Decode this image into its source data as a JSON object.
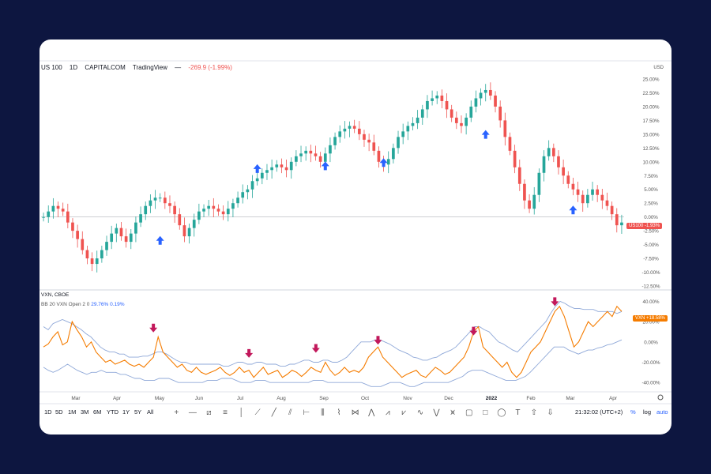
{
  "header": {
    "symbol": "US 100",
    "interval": "1D",
    "source": "CAPITALCOM",
    "platform": "TradingView",
    "change": "-269.9 (-1.99%)"
  },
  "indicator": {
    "name": "VXN, CBOE",
    "bb_label": "BB 20 VXN Open 2 0",
    "bb_v1": "29.76%",
    "bb_v2": "0.19%"
  },
  "price_tag": {
    "label": "US100",
    "value": "-1.93%"
  },
  "vxn_tag": {
    "label": "VXN",
    "value": "+18.58%"
  },
  "timeframes": [
    "1D",
    "5D",
    "1M",
    "3M",
    "6M",
    "YTD",
    "1Y",
    "5Y",
    "All"
  ],
  "clock": "21:32:02 (UTC+2)",
  "right_buttons": [
    "%",
    "log",
    "auto"
  ],
  "colors": {
    "up": "#26a69a",
    "down": "#ef5350",
    "arrow_up": "#2962ff",
    "arrow_down": "#c2185b",
    "vxn": "#f57c00",
    "bb": "#8fa8d8"
  },
  "chart_data": [
    {
      "type": "candlestick",
      "title": "US 100 · 1D · CAPITALCOM",
      "ylabel": "",
      "x_ticks": [
        "Mar",
        "Apr",
        "May",
        "Jun",
        "Jul",
        "Aug",
        "Sep",
        "Oct",
        "Nov",
        "Dec",
        "2022",
        "Feb",
        "Mar",
        "Apr"
      ],
      "y_ticks": [
        "25.00%",
        "22.50%",
        "20.00%",
        "17.50%",
        "15.00%",
        "12.50%",
        "10.00%",
        "7.50%",
        "5.00%",
        "2.50%",
        "0.00%",
        "-2.50%",
        "-5.00%",
        "-7.50%",
        "-10.00%",
        "-12.50%"
      ],
      "y_ticks_values": [
        25,
        22.5,
        20,
        17.5,
        15,
        12.5,
        10,
        7.5,
        5,
        2.5,
        0,
        -2.5,
        -5,
        -7.5,
        -10,
        -12.5
      ],
      "ylim": [
        -12.5,
        25
      ],
      "unit": "USD",
      "series_pct": [
        0,
        1,
        2,
        1.5,
        1,
        -1,
        -2.5,
        -4,
        -6,
        -7.5,
        -8.5,
        -7.5,
        -6,
        -4.5,
        -3,
        -2,
        -3.5,
        -4.5,
        -3,
        -1,
        0.5,
        2,
        3,
        3.5,
        3.5,
        2.5,
        2,
        0.5,
        -1.5,
        -3.5,
        -2,
        -0.5,
        1,
        1.5,
        2,
        1.5,
        1,
        0.5,
        1.5,
        2.5,
        3.5,
        4.5,
        5,
        6.5,
        7,
        8,
        8.5,
        9,
        9.5,
        9,
        8.5,
        10,
        11,
        11.5,
        12,
        11.5,
        11,
        10,
        11.5,
        13,
        14.5,
        15.5,
        16,
        16.5,
        16,
        15,
        14,
        13.5,
        12,
        10,
        9.5,
        10.5,
        12.5,
        14.5,
        15.5,
        16.5,
        17,
        18,
        19.5,
        21,
        21.5,
        22,
        21,
        19.5,
        18,
        17,
        16.5,
        18,
        20,
        21.5,
        22.5,
        23,
        22,
        20,
        17.5,
        14.5,
        12,
        9,
        6,
        3,
        1.5,
        4,
        8,
        11,
        12.5,
        11,
        9,
        7.5,
        6,
        5,
        4,
        2.5,
        4,
        5,
        4,
        3,
        2,
        0.5,
        -1.5,
        -1
      ],
      "up_arrows": [
        {
          "x_index": 24,
          "pct": -4.3
        },
        {
          "x_index": 44,
          "pct": 8.7
        },
        {
          "x_index": 58,
          "pct": 9.2
        },
        {
          "x_index": 70,
          "pct": 9.8
        },
        {
          "x_index": 91,
          "pct": 14.9
        },
        {
          "x_index": 109,
          "pct": 1.2
        }
      ],
      "lines": [
        {
          "name": "baseline",
          "pct": 0
        }
      ]
    },
    {
      "type": "line",
      "title": "VXN, CBOE",
      "y_ticks": [
        "40.00%",
        "20.00%",
        "0.00%",
        "-20.00%",
        "-40.00%"
      ],
      "y_ticks_values": [
        40,
        20,
        0,
        -20,
        -40
      ],
      "ylim": [
        -50,
        45
      ],
      "series": [
        {
          "name": "VXN",
          "values": [
            -5,
            -2,
            5,
            10,
            -3,
            0,
            20,
            12,
            5,
            -5,
            0,
            -10,
            -15,
            -20,
            -18,
            -22,
            -20,
            -18,
            -22,
            -24,
            -22,
            -25,
            -20,
            -15,
            5,
            -10,
            -15,
            -20,
            -25,
            -22,
            -28,
            -30,
            -25,
            -30,
            -32,
            -30,
            -28,
            -25,
            -30,
            -33,
            -30,
            -25,
            -30,
            -28,
            -35,
            -30,
            -25,
            -32,
            -30,
            -28,
            -35,
            -32,
            -28,
            -30,
            -34,
            -30,
            -25,
            -28,
            -30,
            -20,
            -28,
            -33,
            -30,
            -25,
            -30,
            -28,
            -30,
            -25,
            -15,
            -10,
            -5,
            -15,
            -20,
            -25,
            -30,
            -35,
            -32,
            -30,
            -28,
            -33,
            -35,
            -30,
            -25,
            -28,
            -32,
            -30,
            -25,
            -20,
            -15,
            -5,
            10,
            15,
            -5,
            -10,
            -15,
            -20,
            -25,
            -20,
            -30,
            -35,
            -30,
            -20,
            -10,
            -5,
            0,
            10,
            20,
            30,
            35,
            25,
            10,
            -5,
            0,
            10,
            20,
            15,
            20,
            25,
            30,
            25,
            35,
            30
          ]
        },
        {
          "name": "BB upper",
          "values": [
            15,
            12,
            18,
            20,
            22,
            20,
            18,
            15,
            12,
            8,
            5,
            0,
            -5,
            -8,
            -10,
            -10,
            -12,
            -12,
            -15,
            -15,
            -15,
            -14,
            -14,
            -12,
            -10,
            -10,
            -12,
            -15,
            -18,
            -20,
            -20,
            -22,
            -22,
            -22,
            -22,
            -22,
            -22,
            -22,
            -24,
            -24,
            -22,
            -20,
            -20,
            -22,
            -22,
            -20,
            -20,
            -22,
            -22,
            -22,
            -24,
            -24,
            -22,
            -22,
            -20,
            -18,
            -18,
            -20,
            -20,
            -18,
            -18,
            -20,
            -20,
            -18,
            -15,
            -10,
            -5,
            0,
            0,
            0,
            2,
            2,
            0,
            -2,
            -5,
            -8,
            -10,
            -12,
            -15,
            -16,
            -18,
            -18,
            -16,
            -15,
            -12,
            -10,
            -8,
            -5,
            0,
            5,
            10,
            15,
            15,
            12,
            10,
            5,
            0,
            -2,
            -5,
            -8,
            -10,
            -5,
            0,
            5,
            10,
            15,
            20,
            28,
            35,
            40,
            38,
            35,
            33,
            33,
            32,
            32,
            32,
            30,
            30,
            30,
            30,
            28,
            30
          ]
        },
        {
          "name": "BB lower",
          "values": [
            -25,
            -28,
            -30,
            -28,
            -25,
            -22,
            -25,
            -28,
            -30,
            -32,
            -30,
            -30,
            -28,
            -30,
            -30,
            -30,
            -32,
            -32,
            -34,
            -36,
            -36,
            -38,
            -38,
            -38,
            -36,
            -36,
            -36,
            -38,
            -40,
            -40,
            -40,
            -40,
            -40,
            -40,
            -38,
            -38,
            -38,
            -36,
            -36,
            -36,
            -38,
            -40,
            -40,
            -40,
            -38,
            -38,
            -38,
            -40,
            -40,
            -40,
            -40,
            -40,
            -40,
            -40,
            -40,
            -40,
            -38,
            -38,
            -38,
            -40,
            -40,
            -40,
            -40,
            -40,
            -40,
            -40,
            -40,
            -42,
            -44,
            -44,
            -44,
            -42,
            -40,
            -40,
            -40,
            -42,
            -44,
            -44,
            -42,
            -40,
            -40,
            -40,
            -40,
            -40,
            -40,
            -38,
            -36,
            -34,
            -30,
            -28,
            -28,
            -28,
            -30,
            -32,
            -34,
            -36,
            -38,
            -38,
            -38,
            -36,
            -34,
            -30,
            -25,
            -20,
            -15,
            -10,
            -5,
            -5,
            -5,
            -8,
            -10,
            -12,
            -10,
            -8,
            -8,
            -6,
            -5,
            -3,
            -2,
            0,
            2
          ]
        }
      ],
      "down_arrows": [
        {
          "x_index": 23,
          "pct": 14
        },
        {
          "x_index": 43,
          "pct": -11
        },
        {
          "x_index": 57,
          "pct": -6
        },
        {
          "x_index": 70,
          "pct": 2
        },
        {
          "x_index": 90,
          "pct": 11
        },
        {
          "x_index": 107,
          "pct": 40
        }
      ]
    }
  ]
}
